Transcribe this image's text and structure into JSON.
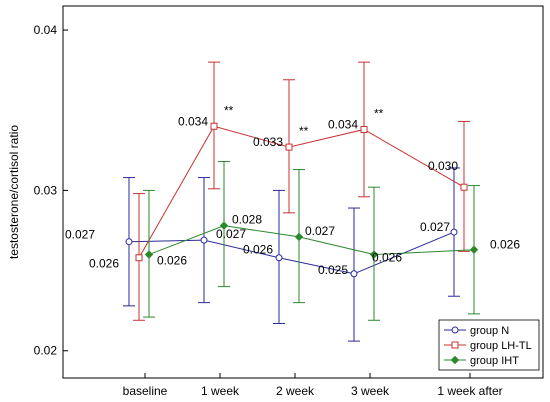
{
  "chart_data": {
    "type": "line",
    "title": "",
    "xlabel": "",
    "ylabel": "testosterone/cortisol ratio",
    "ylim": [
      0.0183,
      0.0415
    ],
    "yticks": [
      0.02,
      0.03,
      0.04
    ],
    "ytick_labels": [
      "0.02",
      "0.03",
      "0.04"
    ],
    "categories": [
      "baseline",
      "1 week",
      "2 week",
      "3 week",
      "1 week after"
    ],
    "grid": false,
    "legend_position": "bottom-right",
    "series": [
      {
        "name": "group N",
        "color": "#2a2a9a",
        "marker": "circle",
        "values": [
          0.0268,
          0.0269,
          0.0258,
          0.0248,
          0.0274
        ],
        "err_low": [
          0.0228,
          0.023,
          0.0217,
          0.0206,
          0.0234
        ],
        "err_high": [
          0.0308,
          0.0308,
          0.03,
          0.0289,
          0.0314
        ],
        "labels": [
          "0.027",
          "0.027",
          "0.026",
          "0.025",
          "0.027"
        ],
        "annotations": [
          "",
          "",
          "",
          "",
          ""
        ]
      },
      {
        "name": "group LH-TL",
        "color": "#c83232",
        "marker": "square",
        "values": [
          0.0258,
          0.034,
          0.0327,
          0.0338,
          0.0302
        ],
        "err_low": [
          0.0219,
          0.0301,
          0.0286,
          0.0296,
          0.0262
        ],
        "err_high": [
          0.0298,
          0.038,
          0.0369,
          0.038,
          0.0343
        ],
        "labels": [
          "0.026",
          "0.034",
          "0.033",
          "0.034",
          "0.030"
        ],
        "annotations": [
          "",
          "**",
          "**",
          "**",
          ""
        ]
      },
      {
        "name": "group IHT",
        "color": "#2a8a2a",
        "marker": "diamond",
        "values": [
          0.026,
          0.0278,
          0.0271,
          0.026,
          0.0263
        ],
        "err_low": [
          0.0221,
          0.024,
          0.023,
          0.0219,
          0.0223
        ],
        "err_high": [
          0.03,
          0.0318,
          0.0313,
          0.0302,
          0.0303
        ],
        "labels": [
          "0.026",
          "0.028",
          "0.027",
          "0.026",
          "0.026"
        ],
        "annotations": [
          "",
          "",
          "",
          "",
          ""
        ]
      }
    ]
  }
}
